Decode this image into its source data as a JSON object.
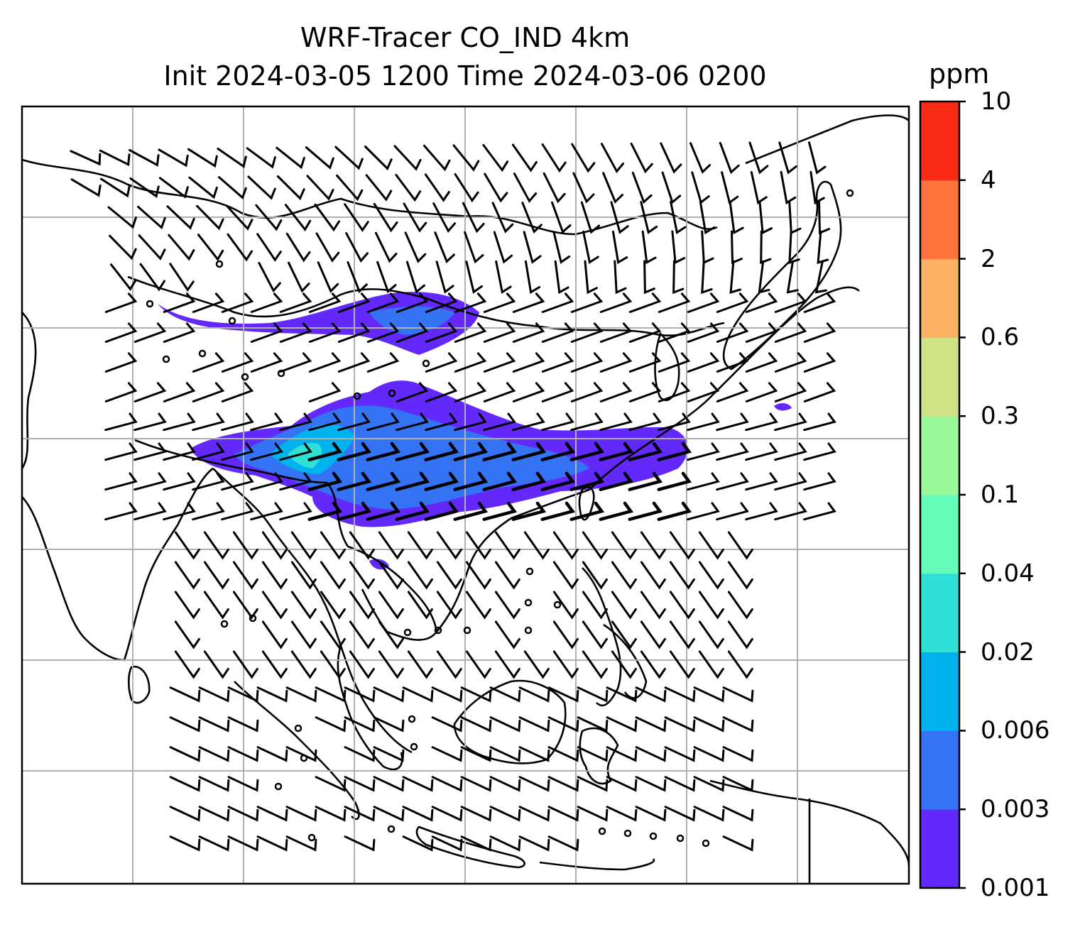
{
  "title_line1": "WRF-Tracer CO_IND 4km",
  "title_line2": "Init 2024-03-05 1200 Time 2024-03-06 0200",
  "colorbar": {
    "unit": "ppm",
    "levels": [
      "0.001",
      "0.003",
      "0.006",
      "0.02",
      "0.04",
      "0.1",
      "0.3",
      "0.6",
      "2",
      "4",
      "10"
    ],
    "colors": [
      "#6329fa",
      "#3573f5",
      "#00b2ee",
      "#30dfd5",
      "#66fcb9",
      "#99f99a",
      "#cfe285",
      "#fdb162",
      "#fd733b",
      "#fa2a16"
    ]
  },
  "map": {
    "gridlines": true,
    "coastline_color": "#000000",
    "grid_color": "#b0b0b0",
    "plume_colors": {
      "outer": "#6329fa",
      "mid": "#3573f5",
      "inner": "#00b2ee",
      "core": "#30dfd5"
    }
  }
}
